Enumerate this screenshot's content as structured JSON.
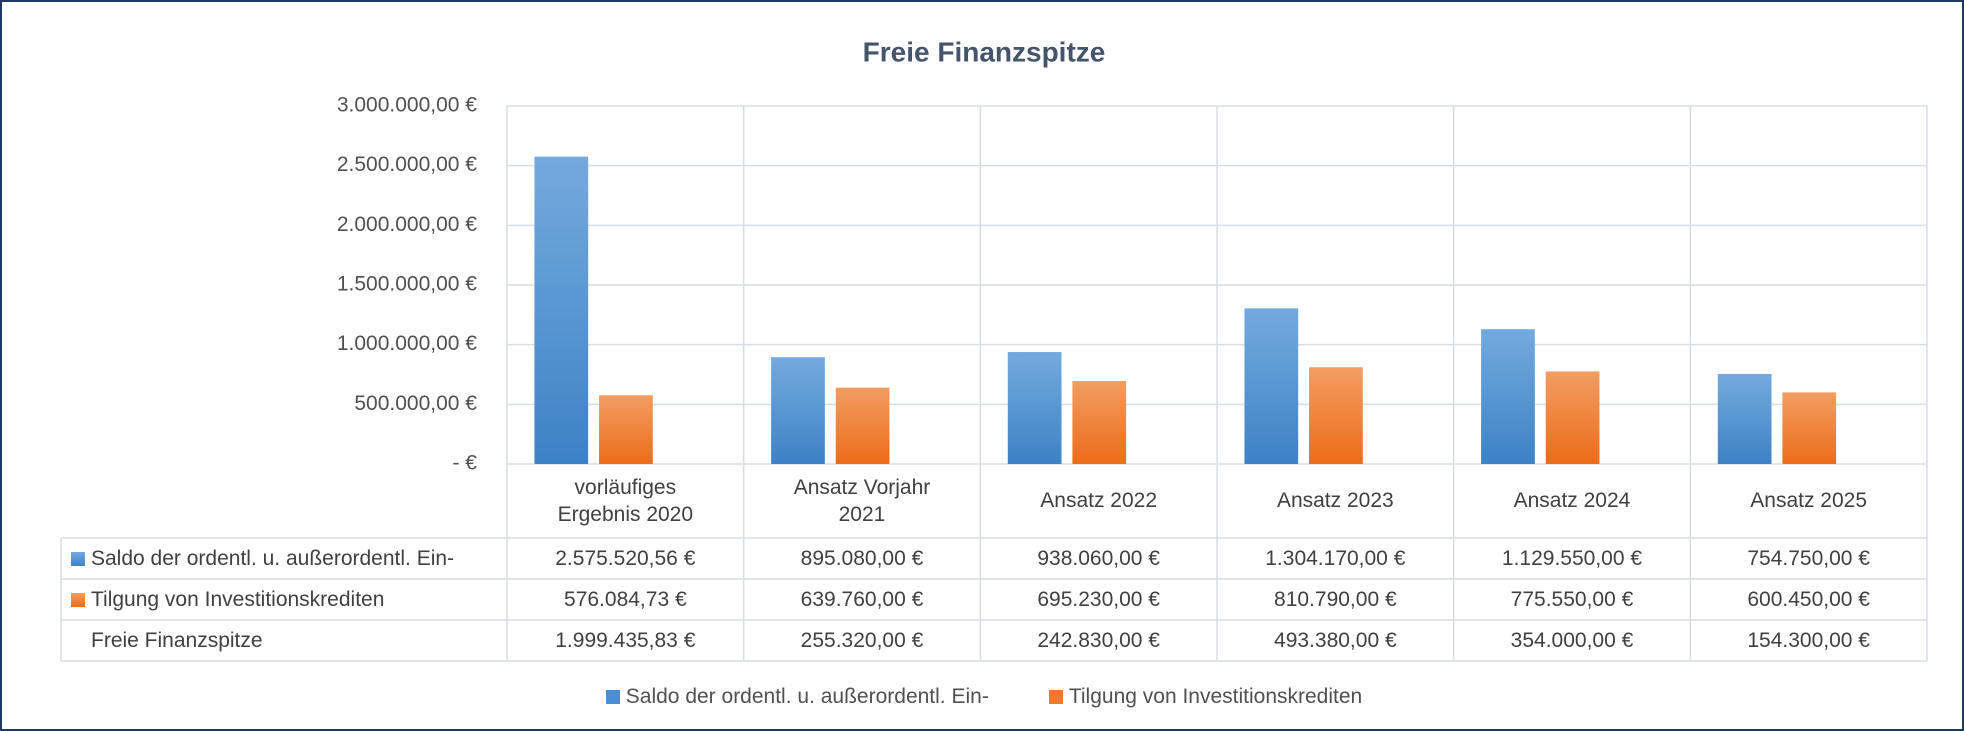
{
  "chart_data": {
    "type": "bar",
    "title": "Freie Finanzspitze",
    "categories": [
      "vorläufiges Ergebnis 2020",
      "Ansatz Vorjahr 2021",
      "Ansatz 2022",
      "Ansatz 2023",
      "Ansatz 2024",
      "Ansatz 2025"
    ],
    "series": [
      {
        "name": "Saldo der ordentl. u. außerordentl. Ein-",
        "color": "#4a8fd4",
        "values": [
          2575520.56,
          895080,
          938060,
          1304170,
          1129550,
          754750
        ],
        "value_labels": [
          "2.575.520,56 €",
          "895.080,00 €",
          "938.060,00 €",
          "1.304.170,00 €",
          "1.129.550,00 €",
          "754.750,00 €"
        ]
      },
      {
        "name": "Tilgung von Investitionskrediten",
        "color": "#f07a2c",
        "values": [
          576084.73,
          639760,
          695230,
          810790,
          775550,
          600450
        ],
        "value_labels": [
          "576.084,73 €",
          "639.760,00 €",
          "695.230,00 €",
          "810.790,00 €",
          "775.550,00 €",
          "600.450,00 €"
        ]
      },
      {
        "name": "Freie Finanzspitze",
        "values": [
          1999435.83,
          255320,
          242830,
          493380,
          354000,
          154300
        ],
        "value_labels": [
          "1.999.435,83 €",
          "255.320,00 €",
          "242.830,00 €",
          "493.380,00 €",
          "354.000,00 €",
          "154.300,00 €"
        ]
      }
    ],
    "ylim": [
      0,
      3000000
    ],
    "yticks": [
      {
        "value": 0,
        "label": "-   €"
      },
      {
        "value": 500000,
        "label": "500.000,00 €"
      },
      {
        "value": 1000000,
        "label": "1.000.000,00 €"
      },
      {
        "value": 1500000,
        "label": "1.500.000,00 €"
      },
      {
        "value": 2000000,
        "label": "2.000.000,00 €"
      },
      {
        "value": 2500000,
        "label": "2.500.000,00 €"
      },
      {
        "value": 3000000,
        "label": "3.000.000,00 €"
      }
    ],
    "grid": true,
    "legend": "bottom"
  }
}
